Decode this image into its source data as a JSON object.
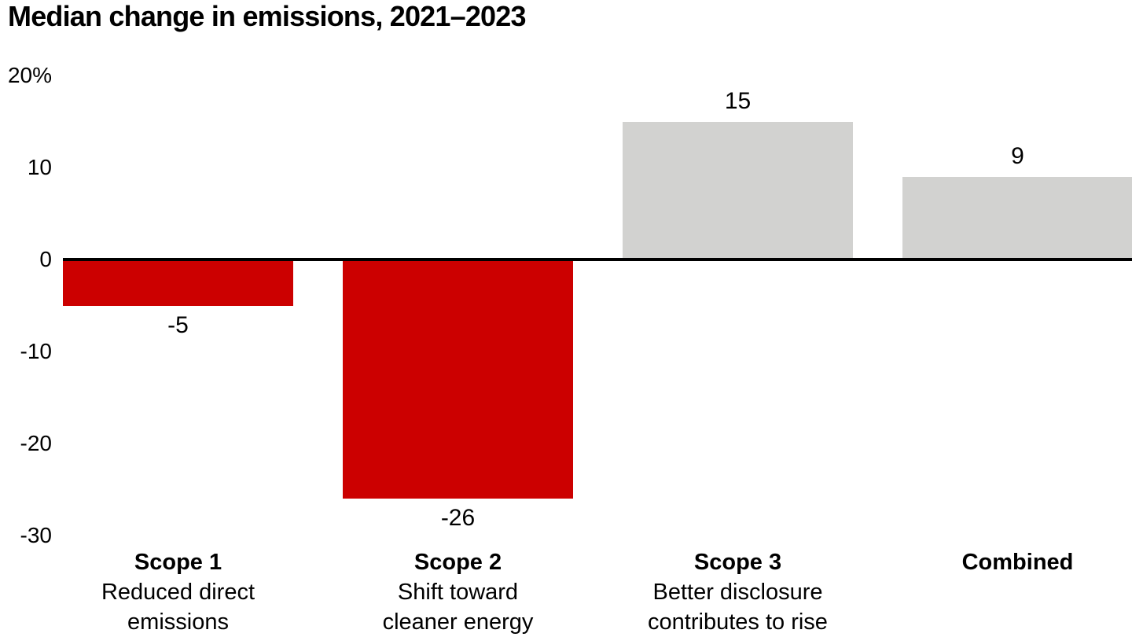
{
  "title": "Median change in emissions, 2021–2023",
  "colors": {
    "negative_bar": "#cc0000",
    "positive_bar": "#d2d2d0",
    "axis": "#000000",
    "text": "#000000",
    "background": "#ffffff"
  },
  "chart_data": {
    "type": "bar",
    "title": "Median change in emissions, 2021–2023",
    "unit": "%",
    "categories": [
      "Scope 1",
      "Scope 2",
      "Scope 3",
      "Combined"
    ],
    "category_sublabels": [
      [
        "Reduced direct",
        "emissions"
      ],
      [
        "Shift toward",
        "cleaner energy"
      ],
      [
        "Better disclosure",
        "contributes to rise"
      ],
      []
    ],
    "values": [
      -5,
      -26,
      15,
      9
    ],
    "value_labels": [
      "-5",
      "-26",
      "15",
      "9"
    ],
    "bar_colors": [
      "#cc0000",
      "#cc0000",
      "#d2d2d0",
      "#d2d2d0"
    ],
    "y_ticks": [
      {
        "label": "20%",
        "value": 20
      },
      {
        "label": "10",
        "value": 10
      },
      {
        "label": "0",
        "value": 0
      },
      {
        "label": "-10",
        "value": -10
      },
      {
        "label": "-20",
        "value": -20
      },
      {
        "label": "-30",
        "value": -30
      }
    ],
    "ylim": [
      -30,
      20
    ],
    "xlabel": "",
    "ylabel": "",
    "grid": false,
    "legend": false
  }
}
